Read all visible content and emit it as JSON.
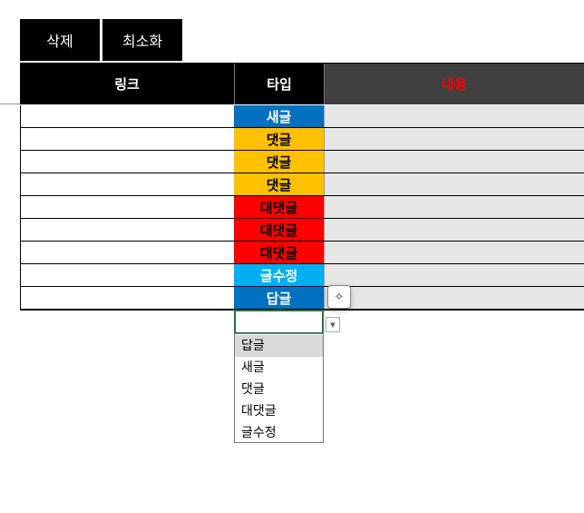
{
  "toolbar": {
    "delete_label": "삭제",
    "minimize_label": "최소화"
  },
  "headers": {
    "link": "링크",
    "type": "타입",
    "content": "내용"
  },
  "colors": {
    "header_bg": "#000000",
    "content_header_bg": "#404040",
    "content_header_text": "#ff0000",
    "cell_bg": "#e6e6e6",
    "selected_border": "#217346"
  },
  "rows": [
    {
      "type": "새글",
      "bg": "#0070C0",
      "fg": "#ffffff"
    },
    {
      "type": "댓글",
      "bg": "#FFC000",
      "fg": "#000000"
    },
    {
      "type": "댓글",
      "bg": "#FFC000",
      "fg": "#000000"
    },
    {
      "type": "댓글",
      "bg": "#FFC000",
      "fg": "#000000"
    },
    {
      "type": "대댓글",
      "bg": "#FF0000",
      "fg": "#000000"
    },
    {
      "type": "대댓글",
      "bg": "#FF0000",
      "fg": "#000000"
    },
    {
      "type": "대댓글",
      "bg": "#FF0000",
      "fg": "#000000"
    },
    {
      "type": "글수정",
      "bg": "#00B0F0",
      "fg": "#ffffff"
    },
    {
      "type": "답글",
      "bg": "#0070C0",
      "fg": "#ffffff"
    }
  ],
  "dropdown": {
    "value": "",
    "options": [
      "답글",
      "새글",
      "댓글",
      "대댓글",
      "글수정"
    ],
    "highlighted": "답글"
  },
  "icons": {
    "quick_analysis": "sparkle-wand-icon",
    "dropdown_arrow": "triangle-down-icon"
  }
}
